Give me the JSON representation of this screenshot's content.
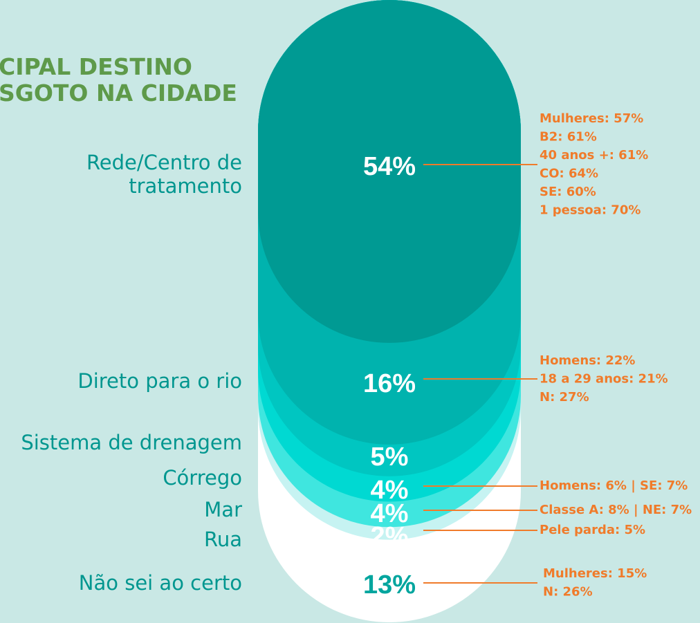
{
  "chart_data": {
    "type": "capsule",
    "title_lines": [
      "CIPAL DESTINO",
      "SGOTO NA CIDADE"
    ],
    "categories": [
      "Rede/Centro de tratamento",
      "Direto para o rio",
      "Sistema de drenagem",
      "Córrego",
      "Mar",
      "Rua",
      "Não sei ao certo"
    ],
    "values": [
      54,
      16,
      5,
      4,
      4,
      2,
      13
    ],
    "value_labels": [
      "54%",
      "16%",
      "5%",
      "4%",
      "4%",
      "2%",
      "13%"
    ],
    "colors": [
      "#009a93",
      "#00b3ae",
      "#00c6c1",
      "#00d9d2",
      "#3fe6df",
      "#c6f3f2",
      "#ffffff"
    ],
    "annotations": [
      [
        "Mulheres: 57%",
        "B2: 61%",
        "40 anos +: 61%",
        "CO: 64%",
        "SE: 60%",
        "1 pessoa: 70%"
      ],
      [
        "Homens: 22%",
        "18 a 29 anos: 21%",
        "N: 27%"
      ],
      null,
      [
        "Homens: 6% | SE: 7%"
      ],
      [
        "Classe A: 8% | NE: 7%"
      ],
      [
        "Pele parda: 5%"
      ],
      [
        "Mulheres: 15%",
        "N: 26%"
      ]
    ]
  }
}
